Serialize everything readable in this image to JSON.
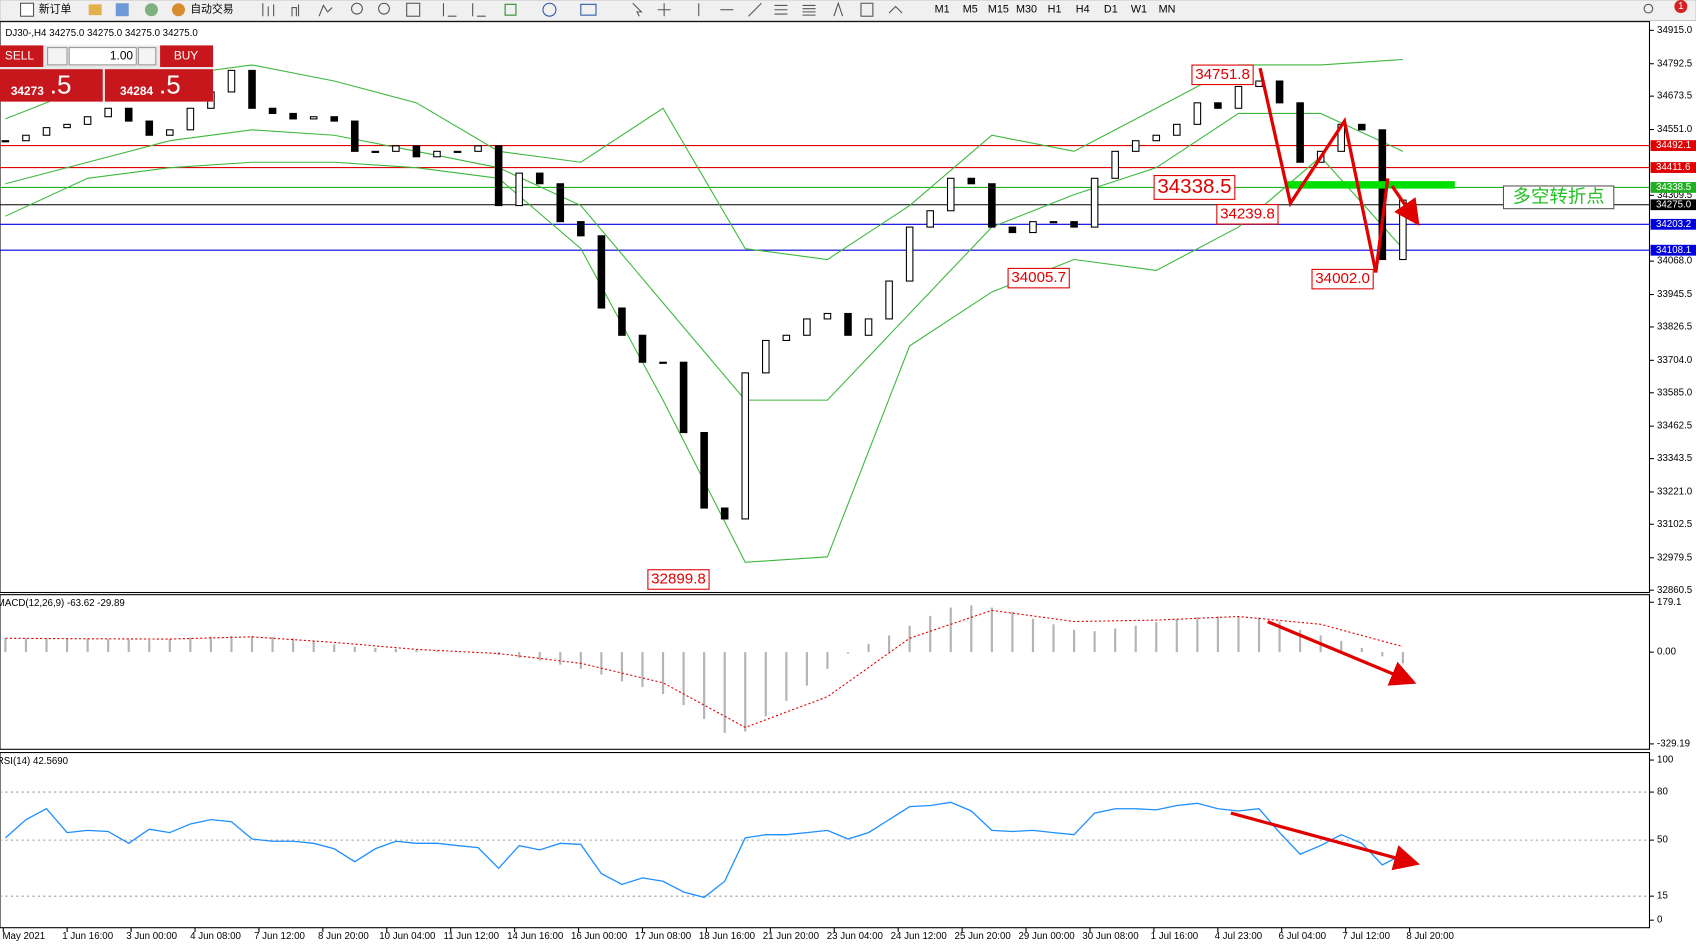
{
  "toolbar": {
    "new_order": "新订单",
    "auto_trade": "自动交易",
    "timeframes": [
      "M1",
      "M5",
      "M15",
      "M30",
      "H1",
      "H4",
      "D1",
      "W1",
      "MN"
    ],
    "badge": "1"
  },
  "symbol_info": "DJ30-,H4  34275.0 34275.0 34275.0 34275.0",
  "trade_panel": {
    "sell": "SELL",
    "buy": "BUY",
    "volume": "1.00",
    "bid_main": "34273",
    "bid_tail": ".5",
    "ask_main": "34284",
    "ask_tail": ".5"
  },
  "time_axis": {
    "labels": [
      "May 2021",
      "1 Jun 16:00",
      "3 Jun 00:00",
      "4 Jun 08:00",
      "7 Jun 12:00",
      "8 Jun 20:00",
      "10 Jun 04:00",
      "11 Jun 12:00",
      "14 Jun 16:00",
      "16 Jun 00:00",
      "17 Jun 08:00",
      "18 Jun 16:00",
      "21 Jun 20:00",
      "23 Jun 04:00",
      "24 Jun 12:00",
      "25 Jun 20:00",
      "29 Jun 00:00",
      "30 Jun 08:00",
      "1 Jul 16:00",
      "4 Jul 23:00",
      "6 Jul 04:00",
      "7 Jul 12:00",
      "8 Jul 20:00"
    ]
  },
  "note": "多空转折点",
  "chart_data": [
    {
      "type": "candlestick",
      "up_color": "#ffffff",
      "down_color": "#000000",
      "close": [
        34510,
        34530,
        34558,
        34570,
        34598,
        34629,
        34582,
        34530,
        34550,
        34629,
        34689,
        34768,
        34629,
        34610,
        34590,
        34598,
        34582,
        34471,
        34471,
        34491,
        34451,
        34471,
        34471,
        34491,
        34272,
        34391,
        34352,
        34213,
        34161,
        33896,
        33796,
        33697,
        33697,
        33439,
        33162,
        33122,
        33658,
        33777,
        33796,
        33856,
        33876,
        33796,
        33856,
        33995,
        34193,
        34253,
        34372,
        34352,
        34193,
        34173,
        34213,
        34213,
        34193,
        34372,
        34471,
        34510,
        34530,
        34570,
        34649,
        34629,
        34709,
        34729,
        34649,
        34431,
        34471,
        34570,
        34550,
        34074,
        34292
      ],
      "bands": {
        "color": "#3cb83c",
        "upper": [
          34590,
          34709,
          34748,
          34788,
          34729,
          34649,
          34471,
          34431,
          34629,
          34114,
          34074,
          34272,
          34530,
          34471,
          34629,
          34788,
          34788,
          34808
        ],
        "middle": [
          34352,
          34431,
          34510,
          34550,
          34530,
          34471,
          34411,
          34272,
          33915,
          33558,
          33558,
          33876,
          34193,
          34312,
          34411,
          34610,
          34610,
          34471
        ],
        "lower": [
          34233,
          34372,
          34411,
          34431,
          34431,
          34411,
          34372,
          34114,
          33558,
          32963,
          32983,
          33757,
          33955,
          34074,
          34034,
          34193,
          34451,
          34114
        ]
      },
      "ylim": [
        32852,
        34947
      ],
      "yticks": [
        {
          "value": 34915,
          "label": "34915.0"
        },
        34792.5,
        34673.5,
        {
          "value": 34551,
          "label": "34551.0"
        },
        34309.5,
        {
          "value": 34068,
          "label": "34068.0"
        },
        33945.5,
        33826.5,
        {
          "value": 33704,
          "label": "33704.0"
        },
        {
          "value": 33585,
          "label": "33585.0"
        },
        33462.5,
        33343.5,
        {
          "value": 33221,
          "label": "33221.0"
        },
        33102.5,
        32979.5,
        32860.5
      ],
      "price_lines": [
        {
          "price": 34492.1,
          "label": "34492.1",
          "color": "#e00000"
        },
        {
          "price": 34411.6,
          "label": "34411.6",
          "color": "#e00000"
        },
        {
          "price": 34338.5,
          "label": "34338.5",
          "color": "#22b022"
        },
        {
          "price": 34275,
          "label": "34275.0",
          "color": "#000000"
        },
        {
          "price": 34203.2,
          "label": "34203.2",
          "color": "#0000dd"
        },
        {
          "price": 34108.1,
          "label": "34108.1",
          "color": "#0000dd"
        }
      ],
      "annotations": [
        {
          "price": 34751.8,
          "label": "34751.8"
        },
        {
          "price": 34338.5,
          "label": "34338.5"
        },
        {
          "price": 34239.8,
          "label": "34239.8"
        },
        {
          "price": 34005.7,
          "label": "34005.7"
        },
        {
          "price": 34002,
          "label": "34002.0"
        },
        {
          "price": 32899.8,
          "label": "32899.8"
        }
      ]
    },
    {
      "type": "macd",
      "label": "MACD(12,26,9) -63.62 -29.89",
      "hist_color": "#b4b4b4",
      "signal_color": "#e00000",
      "histogram": [
        50,
        50,
        50,
        48,
        48,
        47,
        45,
        43,
        48,
        52,
        56,
        58,
        58,
        55,
        50,
        40,
        28,
        20,
        15,
        12,
        8,
        5,
        2,
        -2,
        -10,
        -20,
        -30,
        -45,
        -60,
        -80,
        -105,
        -125,
        -150,
        -190,
        -240,
        -290,
        -285,
        -230,
        -175,
        -120,
        -60,
        -5,
        30,
        60,
        95,
        130,
        160,
        168,
        160,
        145,
        120,
        100,
        80,
        75,
        85,
        95,
        108,
        118,
        125,
        128,
        128,
        125,
        110,
        80,
        60,
        40,
        15,
        -15,
        -40
      ],
      "signal": [
        50,
        48,
        47,
        55,
        35,
        10,
        -5,
        -40,
        -110,
        -270,
        -160,
        50,
        150,
        110,
        115,
        128,
        100,
        20
      ],
      "ylim": [
        -348.6,
        206.3
      ],
      "yticks": [
        179.1,
        {
          "value": 0,
          "label": "0.00"
        },
        -329.19
      ]
    },
    {
      "type": "line",
      "label": "RSI(14) 42.5690",
      "color": "#1e8fff",
      "values": [
        51.4,
        62.8,
        69.6,
        54.7,
        56.1,
        55.4,
        48.0,
        56.8,
        54.7,
        60.1,
        62.8,
        61.5,
        50.7,
        49.3,
        49.3,
        48.0,
        44.6,
        36.5,
        44.6,
        49.3,
        48.0,
        48.0,
        46.6,
        45.3,
        32.4,
        46.6,
        43.9,
        48.0,
        47.3,
        29.1,
        22.3,
        26.4,
        24.3,
        17.6,
        14.2,
        24.3,
        51.4,
        53.4,
        53.4,
        54.7,
        56.1,
        50.7,
        54.7,
        62.8,
        70.9,
        71.6,
        73.6,
        68.2,
        56.1,
        55.4,
        56.1,
        54.7,
        53.4,
        66.9,
        69.6,
        69.6,
        68.9,
        71.6,
        73.0,
        69.6,
        68.2,
        69.6,
        54.7,
        41.2,
        46.6,
        53.4,
        48.0,
        34.5,
        41.2
      ],
      "levels": [
        80,
        50,
        15
      ],
      "ylim": [
        -4.7,
        104.7
      ],
      "yticks": [
        100,
        80,
        50,
        15,
        0
      ]
    }
  ]
}
